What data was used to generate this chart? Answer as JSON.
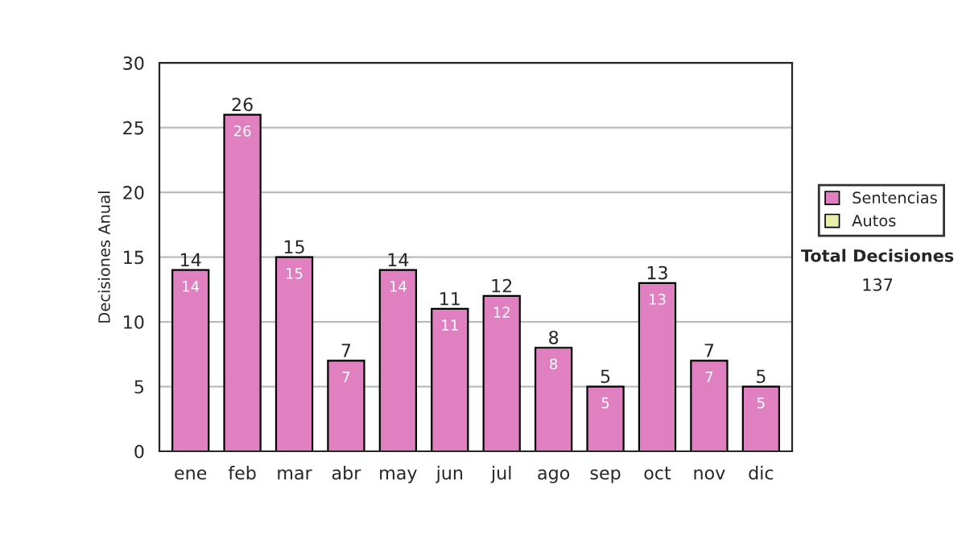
{
  "chart_data": {
    "type": "bar",
    "ylabel": "Decisiones Anual",
    "categories": [
      "ene",
      "feb",
      "mar",
      "abr",
      "may",
      "jun",
      "jul",
      "ago",
      "sep",
      "oct",
      "nov",
      "dic"
    ],
    "stacked": true,
    "series": [
      {
        "name": "Sentencias",
        "color": "#e080c0",
        "values": [
          14,
          26,
          15,
          7,
          14,
          11,
          12,
          8,
          5,
          13,
          7,
          5
        ],
        "value_labels": [
          "14",
          "26",
          "15",
          "7",
          "14",
          "11",
          "12",
          "8",
          "5",
          "13",
          "7",
          "5"
        ]
      },
      {
        "name": "Autos",
        "color": "#e8f0a8",
        "values": [
          0,
          0,
          0,
          0,
          0,
          0,
          0,
          0,
          0,
          0,
          0,
          0
        ]
      }
    ],
    "totals": [
      "14",
      "26",
      "15",
      "7",
      "14",
      "11",
      "12",
      "8",
      "5",
      "13",
      "7",
      "5"
    ],
    "ylim": [
      0,
      30
    ],
    "yticks": [
      0,
      5,
      10,
      15,
      20,
      25,
      30
    ],
    "grid": "y",
    "legend": "right",
    "annotations": [
      "Total Decisiones",
      "137"
    ]
  }
}
